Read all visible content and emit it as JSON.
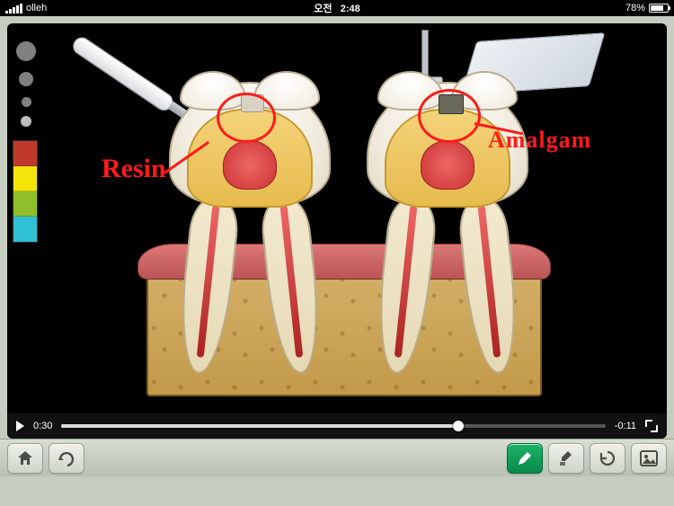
{
  "status": {
    "carrier": "olleh",
    "time_prefix": "오전",
    "time": "2:48",
    "battery_pct": 78,
    "battery_label": "78%"
  },
  "brush_sizes": [
    {
      "d": 22,
      "selected": false
    },
    {
      "d": 16,
      "selected": false
    },
    {
      "d": 11,
      "selected": false
    },
    {
      "d": 8,
      "selected": true
    }
  ],
  "palette": [
    "#c0392b",
    "#f3e50b",
    "#8fbf2b",
    "#2fc0d6"
  ],
  "annotations": {
    "resin": "Resin",
    "amalgam": "Amalgam",
    "circle_color": "#ff1a1a",
    "text_color": "#ff1a1a"
  },
  "illustration": {
    "teeth": [
      {
        "side": "left",
        "filling": "resin"
      },
      {
        "side": "right",
        "filling": "amalgam"
      }
    ],
    "bone_color": "#c29a4a",
    "gum_color": "#b55",
    "crown_color": "#f1ecdf",
    "dentin_color": "#e7bb4e",
    "pulp_color": "#c33",
    "resin_color": "#d9d2c2",
    "amalgam_color": "#6a6a5a"
  },
  "video": {
    "elapsed": "0:30",
    "remaining": "-0:11",
    "progress_pct": 73
  },
  "toolbar": {
    "home": "home",
    "redo": "redo",
    "pen": "pen",
    "brush": "brush-clean",
    "undo": "undo-rotate",
    "image": "image-picker",
    "accent": "#0a8a4b"
  }
}
